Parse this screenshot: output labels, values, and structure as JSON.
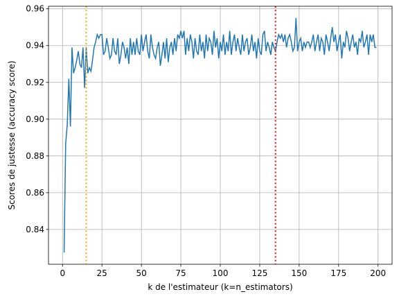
{
  "chart_data": {
    "type": "line",
    "xlabel": "k de l'estimateur (k=n_estimators)",
    "ylabel": "Scores de justesse (accuracy score)",
    "x": [
      1,
      2,
      3,
      4,
      5,
      6,
      7,
      8,
      9,
      10,
      11,
      12,
      13,
      14,
      15,
      16,
      17,
      18,
      19,
      20,
      21,
      22,
      23,
      24,
      25,
      26,
      27,
      28,
      29,
      30,
      31,
      32,
      33,
      34,
      35,
      36,
      37,
      38,
      39,
      40,
      41,
      42,
      43,
      44,
      45,
      46,
      47,
      48,
      49,
      50,
      51,
      52,
      53,
      54,
      55,
      56,
      57,
      58,
      59,
      60,
      61,
      62,
      63,
      64,
      65,
      66,
      67,
      68,
      69,
      70,
      71,
      72,
      73,
      74,
      75,
      76,
      77,
      78,
      79,
      80,
      81,
      82,
      83,
      84,
      85,
      86,
      87,
      88,
      89,
      90,
      91,
      92,
      93,
      94,
      95,
      96,
      97,
      98,
      99,
      100,
      101,
      102,
      103,
      104,
      105,
      106,
      107,
      108,
      109,
      110,
      111,
      112,
      113,
      114,
      115,
      116,
      117,
      118,
      119,
      120,
      121,
      122,
      123,
      124,
      125,
      126,
      127,
      128,
      129,
      130,
      131,
      132,
      133,
      134,
      135,
      136,
      137,
      138,
      139,
      140,
      141,
      142,
      143,
      144,
      145,
      146,
      147,
      148,
      149,
      150,
      151,
      152,
      153,
      154,
      155,
      156,
      157,
      158,
      159,
      160,
      161,
      162,
      163,
      164,
      165,
      166,
      167,
      168,
      169,
      170,
      171,
      172,
      173,
      174,
      175,
      176,
      177,
      178,
      179,
      180,
      181,
      182,
      183,
      184,
      185,
      186,
      187,
      188,
      189,
      190,
      191,
      192,
      193,
      194,
      195,
      196,
      197,
      198,
      199
    ],
    "series": [
      {
        "color": "#1f77b4",
        "values": [
          0.8275,
          0.887,
          0.897,
          0.922,
          0.896,
          0.939,
          0.925,
          0.928,
          0.932,
          0.937,
          0.93,
          0.928,
          0.939,
          0.917,
          0.939,
          0.925,
          0.928,
          0.926,
          0.932,
          0.939,
          0.942,
          0.946,
          0.944,
          0.946,
          0.946,
          0.935,
          0.937,
          0.944,
          0.939,
          0.933,
          0.935,
          0.944,
          0.937,
          0.935,
          0.944,
          0.93,
          0.935,
          0.942,
          0.939,
          0.933,
          0.939,
          0.93,
          0.944,
          0.935,
          0.942,
          0.935,
          0.944,
          0.937,
          0.935,
          0.946,
          0.937,
          0.942,
          0.946,
          0.937,
          0.933,
          0.946,
          0.939,
          0.935,
          0.933,
          0.939,
          0.942,
          0.929,
          0.935,
          0.942,
          0.933,
          0.944,
          0.931,
          0.939,
          0.942,
          0.935,
          0.944,
          0.937,
          0.946,
          0.944,
          0.948,
          0.944,
          0.948,
          0.935,
          0.944,
          0.937,
          0.946,
          0.942,
          0.933,
          0.944,
          0.937,
          0.935,
          0.946,
          0.937,
          0.942,
          0.933,
          0.946,
          0.937,
          0.944,
          0.942,
          0.935,
          0.948,
          0.939,
          0.944,
          0.933,
          0.942,
          0.937,
          0.946,
          0.935,
          0.942,
          0.937,
          0.948,
          0.935,
          0.942,
          0.946,
          0.937,
          0.944,
          0.939,
          0.935,
          0.946,
          0.937,
          0.942,
          0.944,
          0.935,
          0.939,
          0.946,
          0.937,
          0.942,
          0.933,
          0.944,
          0.937,
          0.935,
          0.946,
          0.948,
          0.937,
          0.942,
          0.939,
          0.935,
          0.942,
          0.939,
          0.937,
          0.942,
          0.946,
          0.944,
          0.946,
          0.942,
          0.946,
          0.939,
          0.944,
          0.946,
          0.942,
          0.937,
          0.939,
          0.955,
          0.937,
          0.942,
          0.944,
          0.937,
          0.942,
          0.939,
          0.942,
          0.942,
          0.939,
          0.942,
          0.946,
          0.937,
          0.942,
          0.946,
          0.937,
          0.944,
          0.942,
          0.935,
          0.946,
          0.942,
          0.937,
          0.944,
          0.95,
          0.942,
          0.946,
          0.937,
          0.942,
          0.946,
          0.933,
          0.942,
          0.939,
          0.948,
          0.944,
          0.937,
          0.942,
          0.946,
          0.939,
          0.942,
          0.935,
          0.944,
          0.942,
          0.948,
          0.939,
          0.942,
          0.946,
          0.935,
          0.946,
          0.942,
          0.946,
          0.939,
          0.939
        ]
      }
    ],
    "vlines": [
      {
        "x": 15,
        "color": "orange"
      },
      {
        "x": 135,
        "color": "red"
      }
    ],
    "xlim": [
      -8.9,
      208.9
    ],
    "ylim": [
      0.8211,
      0.9614
    ],
    "xticks": [
      0,
      25,
      50,
      75,
      100,
      125,
      150,
      175,
      200
    ],
    "yticks": [
      0.84,
      0.86,
      0.88,
      {
        "value": 0.9,
        "label": "0.90"
      },
      0.92,
      0.94,
      0.96
    ],
    "grid": true
  }
}
